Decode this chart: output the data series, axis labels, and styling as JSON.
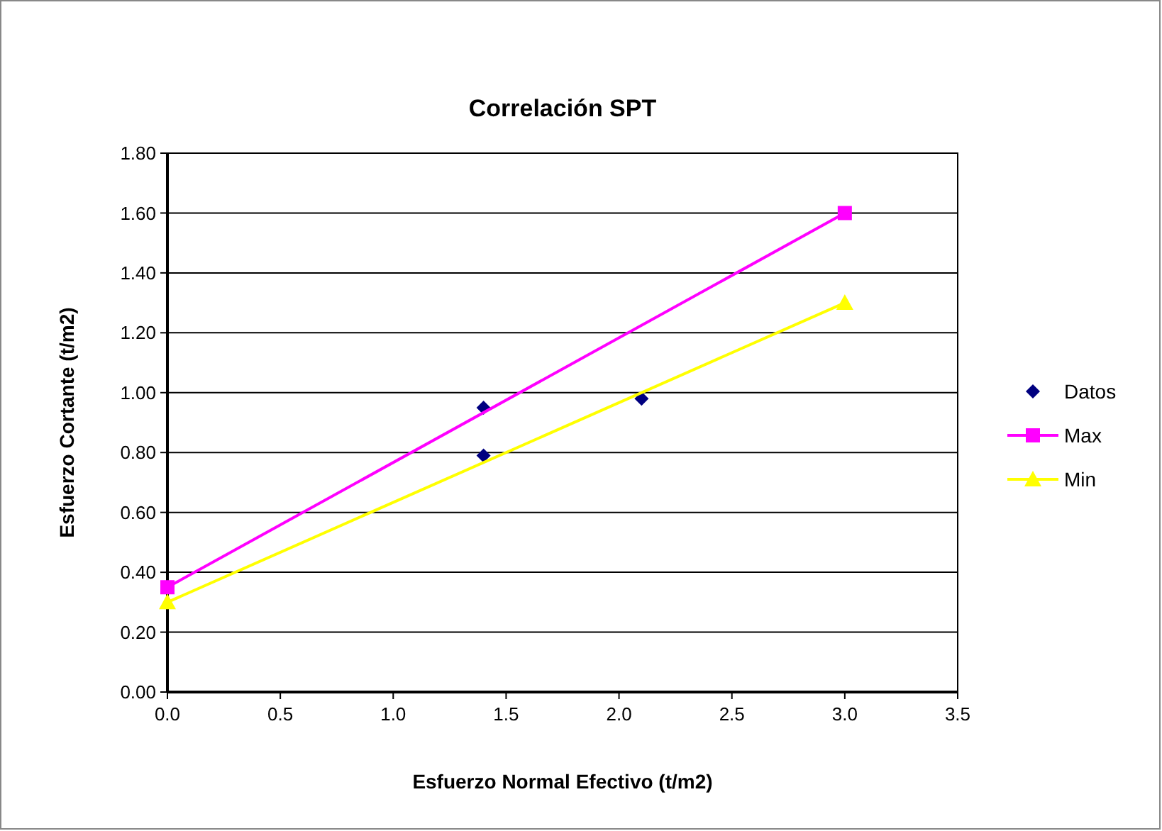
{
  "chart_data": {
    "type": "scatter",
    "title": "Correlación SPT",
    "xlabel": "Esfuerzo Normal Efectivo (t/m2)",
    "ylabel": "Esfuerzo Cortante (t/m2)",
    "series": [
      {
        "name": "Datos",
        "type": "scatter",
        "color": "#000080",
        "marker": "diamond",
        "x": [
          1.4,
          1.4,
          2.1
        ],
        "values": [
          0.95,
          0.79,
          0.98
        ]
      },
      {
        "name": "Max",
        "type": "line",
        "color": "#ff00ff",
        "marker": "square",
        "x": [
          0,
          3
        ],
        "values": [
          0.35,
          1.6
        ]
      },
      {
        "name": "Min",
        "type": "line",
        "color": "#ffff00",
        "marker": "triangle",
        "x": [
          0,
          3
        ],
        "values": [
          0.3,
          1.3
        ]
      }
    ],
    "xlim": [
      0,
      3.5
    ],
    "xticks": [
      {
        "value": 0,
        "label": "0.0"
      },
      {
        "value": 0.5,
        "label": "0.5"
      },
      {
        "value": 1,
        "label": "1.0"
      },
      {
        "value": 1.5,
        "label": "1.5"
      },
      {
        "value": 2,
        "label": "2.0"
      },
      {
        "value": 2.5,
        "label": "2.5"
      },
      {
        "value": 3,
        "label": "3.0"
      },
      {
        "value": 3.5,
        "label": "3.5"
      }
    ],
    "ylim": [
      0,
      1.8
    ],
    "yticks": [
      {
        "value": 0,
        "label": "0.00"
      },
      {
        "value": 0.2,
        "label": "0.20"
      },
      {
        "value": 0.4,
        "label": "0.40"
      },
      {
        "value": 0.6,
        "label": "0.60"
      },
      {
        "value": 0.8,
        "label": "0.80"
      },
      {
        "value": 1,
        "label": "1.00"
      },
      {
        "value": 1.2,
        "label": "1.20"
      },
      {
        "value": 1.4,
        "label": "1.40"
      },
      {
        "value": 1.6,
        "label": "1.60"
      },
      {
        "value": 1.8,
        "label": "1.80"
      }
    ],
    "grid": "y",
    "legend": "right"
  }
}
